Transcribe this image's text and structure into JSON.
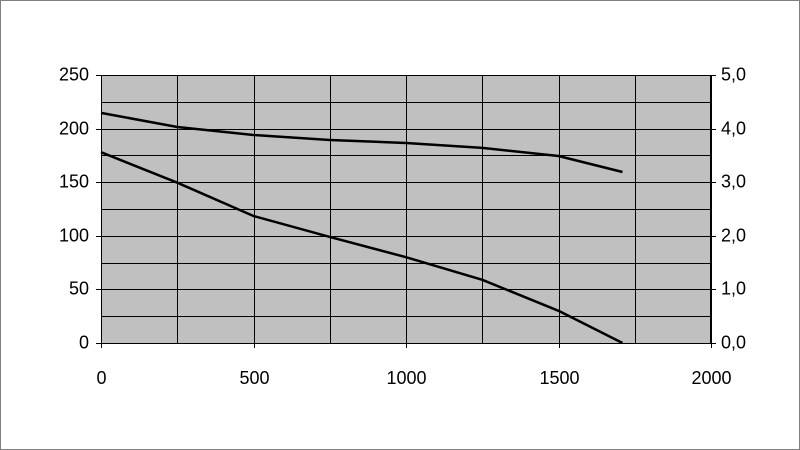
{
  "chart_data": {
    "type": "line",
    "x": [
      0,
      250,
      500,
      750,
      1000,
      1250,
      1500,
      1710
    ],
    "series": [
      {
        "color": "#000000",
        "values": [
          214.6,
          201.5,
          194,
          189.4,
          186.6,
          182,
          174.4,
          159.5
        ]
      },
      {
        "color": "#000000",
        "axis": "y2",
        "values": [
          3.56,
          2.99,
          2.37,
          1.98,
          1.6,
          1.18,
          0.6,
          0
        ]
      }
    ],
    "xlim": [
      0,
      2000
    ],
    "xticks": [
      0,
      500,
      1000,
      1500,
      2000
    ],
    "minor_xticks": [
      250,
      750,
      1250,
      1750
    ],
    "ylim": [
      0,
      250
    ],
    "yticks": [
      0,
      50,
      100,
      150,
      200,
      250
    ],
    "minor_yticks": [
      25,
      75,
      125,
      175,
      225
    ],
    "y2lim": [
      0,
      5
    ],
    "y2ticks": [
      {
        "value": 0,
        "label": "0,0"
      },
      {
        "value": 1,
        "label": "1,0"
      },
      {
        "value": 2,
        "label": "2,0"
      },
      {
        "value": 3,
        "label": "3,0"
      },
      {
        "value": 4,
        "label": "4,0"
      },
      {
        "value": 5,
        "label": "5,0"
      }
    ],
    "grid": true,
    "plot_background": "#c0c0c0"
  }
}
